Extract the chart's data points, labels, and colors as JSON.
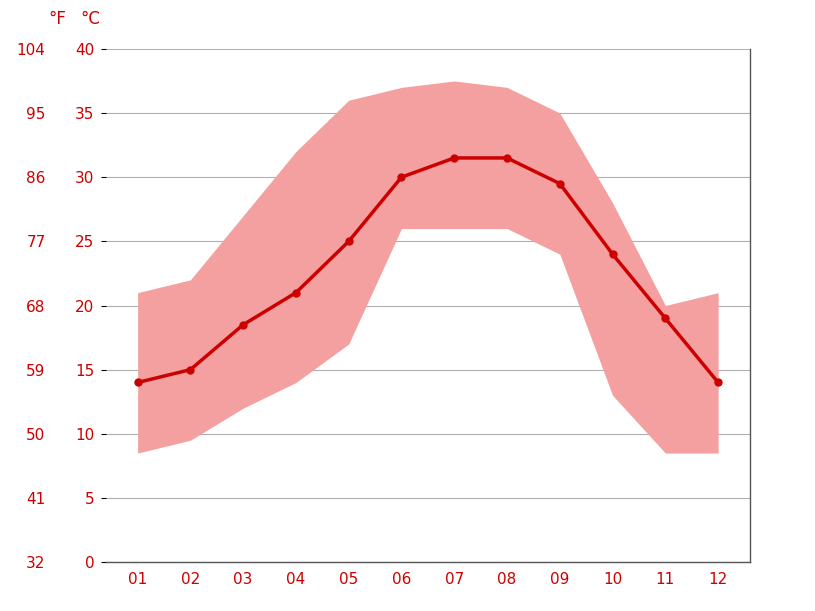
{
  "months": [
    1,
    2,
    3,
    4,
    5,
    6,
    7,
    8,
    9,
    10,
    11,
    12
  ],
  "month_labels": [
    "01",
    "02",
    "03",
    "04",
    "05",
    "06",
    "07",
    "08",
    "09",
    "10",
    "11",
    "12"
  ],
  "mean_C": [
    14,
    15,
    18.5,
    21,
    25,
    30,
    31.5,
    31.5,
    29.5,
    24,
    19,
    14
  ],
  "upper_C": [
    21,
    22,
    27,
    32,
    36,
    37,
    37.5,
    37,
    35,
    28,
    20,
    21
  ],
  "lower_C": [
    8.5,
    9.5,
    12,
    14,
    17,
    26,
    26,
    26,
    24,
    13,
    8.5,
    8.5
  ],
  "y_ticks_C": [
    0,
    5,
    10,
    15,
    20,
    25,
    30,
    35,
    40
  ],
  "y_ticks_F": [
    32,
    41,
    50,
    59,
    68,
    77,
    86,
    95,
    104
  ],
  "ylim_C": [
    0,
    40
  ],
  "xlim": [
    0.4,
    12.6
  ],
  "line_color": "#cc0000",
  "band_color": "#f5a0a0",
  "axis_color": "#cc0000",
  "grid_color": "#b0b0b0",
  "bg_color": "#ffffff",
  "label_F": "°F",
  "label_C": "°C",
  "tick_fontsize": 11,
  "header_fontsize": 12
}
